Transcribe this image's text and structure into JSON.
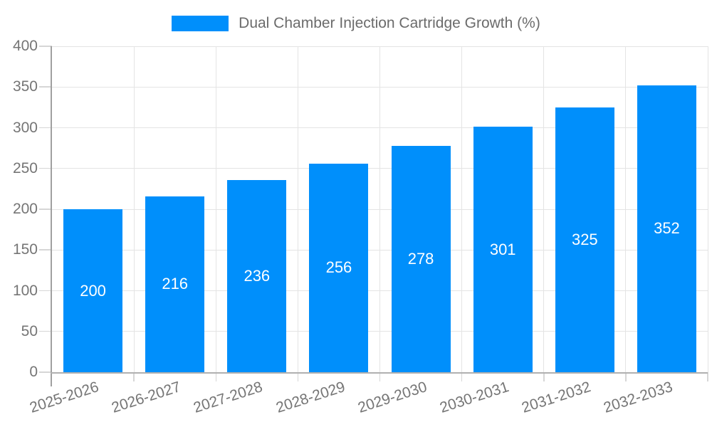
{
  "chart_data": {
    "type": "bar",
    "title": "",
    "legend": "Dual Chamber Injection Cartridge Growth (%)",
    "legend_position": "top-center",
    "categories": [
      "2025-2026",
      "2026-2027",
      "2027-2028",
      "2028-2029",
      "2029-2030",
      "2030-2031",
      "2031-2032",
      "2032-2033"
    ],
    "values": [
      200,
      216,
      236,
      256,
      278,
      301,
      325,
      352
    ],
    "xlabel": "",
    "ylabel": "",
    "ylim": [
      0,
      400
    ],
    "ytick_step": 50,
    "yticks": [
      0,
      50,
      100,
      150,
      200,
      250,
      300,
      350,
      400
    ],
    "grid": true,
    "value_labels_inside_bars": true,
    "colors": {
      "bar": "#008FFB",
      "value_label": "#ffffff",
      "axis_label": "#757575",
      "legend_text": "#6b6b6b",
      "gridline": "#e4e4e4",
      "tick": "#d6d6d6",
      "y_axis_line": "#a0a0a0",
      "x_axis_line": "#b0b0b0"
    }
  }
}
